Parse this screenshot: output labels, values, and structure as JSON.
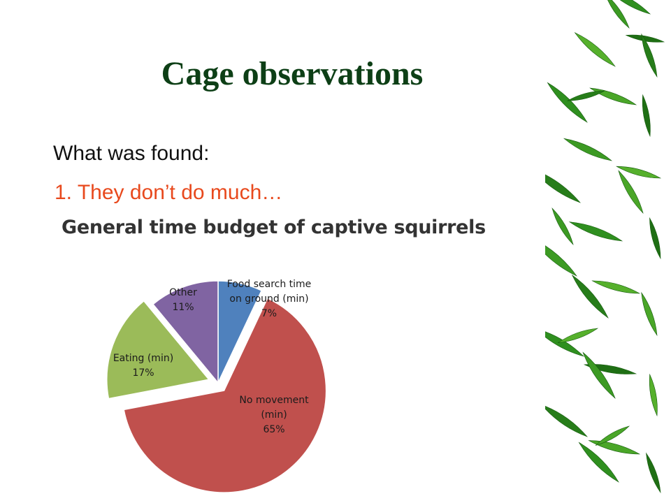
{
  "slide": {
    "title": "Cage observations",
    "line1": "What was found:",
    "line2": "1. They don’t do much…"
  },
  "colors": {
    "title": "#0d3f16",
    "highlight_text": "#e8491d",
    "food_search": "#4f81bd",
    "no_movement": "#c0504d",
    "eating": "#9bbb59",
    "other": "#8064a2"
  },
  "decoration": "bamboo-leaves",
  "chart_data": {
    "type": "pie",
    "title": "General time budget of captive squirrels",
    "slices": [
      {
        "label": "Food search time on ground (min)",
        "lines": [
          "Food search time",
          "on ground (min)",
          "7%"
        ],
        "value": 7,
        "color": "#4f81bd",
        "exploded": false
      },
      {
        "label": "No movement (min)",
        "lines": [
          "No movement",
          "(min)",
          "65%"
        ],
        "value": 65,
        "color": "#c0504d",
        "exploded": true
      },
      {
        "label": "Eating (min)",
        "lines": [
          "Eating (min)",
          "17%"
        ],
        "value": 17,
        "color": "#9bbb59",
        "exploded": true
      },
      {
        "label": "Other",
        "lines": [
          "Other",
          "11%"
        ],
        "value": 11,
        "color": "#8064a2",
        "exploded": false
      }
    ]
  }
}
